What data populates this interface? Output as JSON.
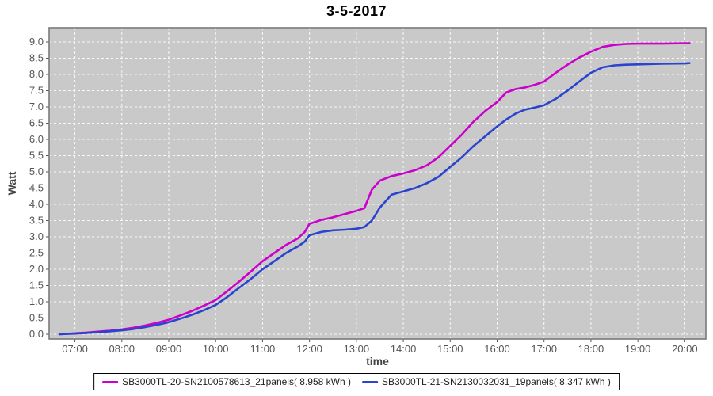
{
  "title": "3-5-2017",
  "chart_data": {
    "type": "line",
    "title": "3-5-2017",
    "xlabel": "time",
    "ylabel": "Watt",
    "x_unit": "hour-of-day",
    "y_unit": "kWh (axis titled Watt)",
    "xlim_hours": [
      6.45,
      20.45
    ],
    "ylim": [
      0,
      9.0
    ],
    "y_tick_step": 0.5,
    "x_tick_hours": [
      7,
      8,
      9,
      10,
      11,
      12,
      13,
      14,
      15,
      16,
      17,
      18,
      19,
      20
    ],
    "x_tick_labels": [
      "07:00",
      "08:00",
      "09:00",
      "10:00",
      "11:00",
      "12:00",
      "13:00",
      "14:00",
      "15:00",
      "16:00",
      "17:00",
      "18:00",
      "19:00",
      "20:00"
    ],
    "grid": true,
    "legend_position": "bottom",
    "colors": {
      "plot_background": "#c9c9c9",
      "grid_line": "#ffffff",
      "plot_border": "#7a7a7a",
      "tick_text": "#555555",
      "axis_label_text": "#444444"
    },
    "x_shared": [
      6.67,
      7.0,
      7.25,
      7.5,
      7.75,
      8.0,
      8.25,
      8.5,
      8.75,
      9.0,
      9.25,
      9.5,
      9.75,
      10.0,
      10.25,
      10.5,
      10.75,
      11.0,
      11.25,
      11.5,
      11.75,
      11.9,
      12.0,
      12.25,
      12.5,
      12.75,
      13.0,
      13.17,
      13.33,
      13.5,
      13.75,
      14.0,
      14.25,
      14.5,
      14.75,
      15.0,
      15.25,
      15.5,
      15.75,
      16.0,
      16.2,
      16.4,
      16.6,
      16.8,
      17.0,
      17.25,
      17.5,
      17.75,
      18.0,
      18.25,
      18.5,
      18.75,
      19.0,
      19.5,
      20.0,
      20.1
    ],
    "series": [
      {
        "name": "SB3000TL-20-SN2100578613_21panels( 8.958 kWh )",
        "total_kwh": 8.958,
        "color": "#cc00cc",
        "y": [
          0.0,
          0.03,
          0.05,
          0.08,
          0.11,
          0.15,
          0.2,
          0.27,
          0.35,
          0.45,
          0.58,
          0.72,
          0.88,
          1.05,
          1.33,
          1.62,
          1.93,
          2.25,
          2.5,
          2.75,
          2.95,
          3.15,
          3.4,
          3.52,
          3.6,
          3.7,
          3.8,
          3.88,
          4.45,
          4.73,
          4.87,
          4.95,
          5.05,
          5.2,
          5.45,
          5.8,
          6.15,
          6.55,
          6.88,
          7.15,
          7.45,
          7.55,
          7.6,
          7.68,
          7.78,
          8.05,
          8.3,
          8.52,
          8.7,
          8.85,
          8.91,
          8.94,
          8.95,
          8.95,
          8.96,
          8.96
        ]
      },
      {
        "name": "SB3000TL-21-SN2130032031_19panels( 8.347 kWh )",
        "total_kwh": 8.347,
        "color": "#2b44cf",
        "y": [
          0.0,
          0.02,
          0.04,
          0.06,
          0.09,
          0.12,
          0.16,
          0.22,
          0.29,
          0.37,
          0.48,
          0.6,
          0.74,
          0.9,
          1.15,
          1.43,
          1.7,
          2.0,
          2.25,
          2.5,
          2.7,
          2.85,
          3.05,
          3.15,
          3.2,
          3.22,
          3.25,
          3.3,
          3.5,
          3.9,
          4.3,
          4.4,
          4.5,
          4.65,
          4.85,
          5.15,
          5.45,
          5.8,
          6.1,
          6.4,
          6.62,
          6.8,
          6.92,
          6.98,
          7.05,
          7.25,
          7.5,
          7.78,
          8.05,
          8.22,
          8.28,
          8.3,
          8.31,
          8.33,
          8.34,
          8.35
        ]
      }
    ]
  }
}
